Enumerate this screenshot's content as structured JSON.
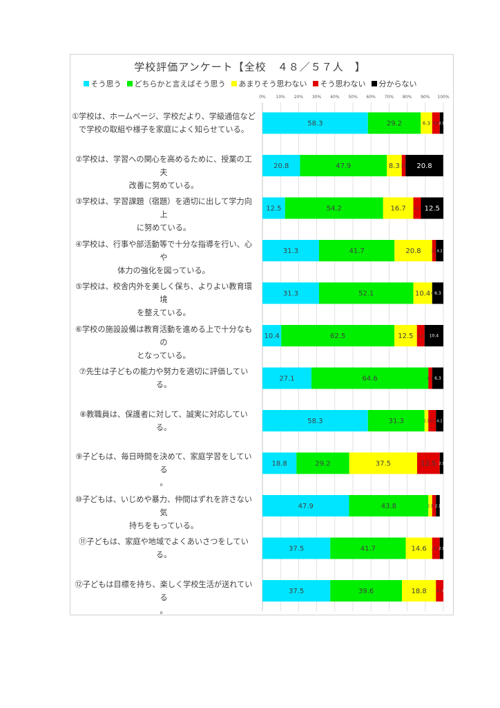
{
  "chart_data": {
    "type": "bar",
    "orientation": "horizontal",
    "stacked": "percent",
    "title": "学校評価アンケート【全校　４８／５７人　】",
    "xlim": [
      0,
      100
    ],
    "x_ticks": [
      "0%",
      "10%",
      "20%",
      "30%",
      "40%",
      "50%",
      "60%",
      "70%",
      "80%",
      "90%",
      "100%"
    ],
    "grid": true,
    "legend_position": "top",
    "categories": [
      "①学校は、ホームページ、学校だより、学級通信などで学校の取組や様子を家庭によく知らせている。",
      "②学校は、学習への関心を高めるために、授業の工夫改善に努めている。",
      "③学校は、学習課題（宿題）を適切に出して学力向上に努めている。",
      "④学校は、行事や部活動等で十分な指導を行い、心や体力の強化を図っている。",
      "⑤学校は、校舎内外を美しく保ち、よりよい教育環境を整えている。",
      "⑥学校の施設設備は教育活動を進める上で十分なものとなっている。",
      "⑦先生は子どもの能力や努力を適切に評価している。",
      "⑧教職員は、保護者に対して、誠実に対応している。",
      "⑨子どもは、毎日時間を決めて、家庭学習をしている。",
      "⑩子どもは、いじめや暴力、仲間はずれを許さない気持ちをもっている。",
      "⑪子どもは、家庭や地域でよくあいさつをしている。",
      "⑫子どもは目標を持ち、楽しく学校生活が送れている。"
    ],
    "series": [
      {
        "name": "そう思う",
        "color": "#00e5ff",
        "values": [
          58.3,
          20.8,
          12.5,
          31.3,
          31.3,
          10.4,
          27.1,
          58.3,
          18.8,
          47.9,
          37.5,
          37.5
        ]
      },
      {
        "name": "どちらかと言えばそう思う",
        "color": "#00ee00",
        "values": [
          29.2,
          47.9,
          54.2,
          41.7,
          52.1,
          62.5,
          64.6,
          31.3,
          29.2,
          43.8,
          41.7,
          39.6
        ]
      },
      {
        "name": "あまりそう思わない",
        "color": "#ffff00",
        "values": [
          6.3,
          8.3,
          16.7,
          20.8,
          10.4,
          12.5,
          0,
          2.1,
          37.5,
          2.1,
          14.6,
          18.8
        ]
      },
      {
        "name": "そう思わない",
        "color": "#e00000",
        "values": [
          4.2,
          2.1,
          4.2,
          2.1,
          0,
          4.2,
          2.1,
          4.2,
          12.5,
          2.1,
          4.2,
          4.1
        ]
      },
      {
        "name": "分からない",
        "color": "#000000",
        "values": [
          2.1,
          20.8,
          12.5,
          4.2,
          6.3,
          10.4,
          6.3,
          4.2,
          2.1,
          2.1,
          2.1,
          0
        ]
      }
    ]
  }
}
